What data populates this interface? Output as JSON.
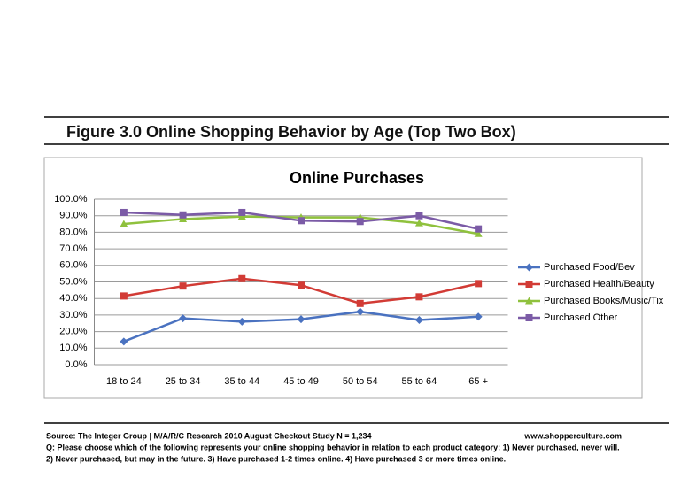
{
  "header": {
    "title": "Figure 3.0 Online Shopping Behavior by Age (Top Two Box)"
  },
  "chart_data": {
    "type": "line",
    "title": "Online Purchases",
    "categories": [
      "18 to 24",
      "25 to 34",
      "35 to 44",
      "45 to 49",
      "50 to 54",
      "55 to 64",
      "65 +"
    ],
    "series": [
      {
        "name": "Purchased Food/Bev",
        "color": "#4a72c0",
        "marker": "diamond",
        "values": [
          14,
          28,
          26,
          27.5,
          32,
          27,
          29
        ]
      },
      {
        "name": "Purchased Health/Beauty",
        "color": "#d23b35",
        "marker": "square",
        "values": [
          41.5,
          47.5,
          52,
          48,
          37,
          41,
          49
        ]
      },
      {
        "name": "Purchased Books/Music/Tix",
        "color": "#8fc13d",
        "marker": "triangle",
        "values": [
          85,
          88,
          89.5,
          89,
          89,
          85.5,
          79
        ]
      },
      {
        "name": "Purchased Other",
        "color": "#7b5ba6",
        "marker": "square",
        "values": [
          92,
          90.5,
          92,
          87,
          86.5,
          90,
          82
        ]
      }
    ],
    "ylim": [
      0,
      100
    ],
    "yticks": [
      {
        "value": 0,
        "label": "0.0%"
      },
      {
        "value": 10,
        "label": "10.0%"
      },
      {
        "value": 20,
        "label": "20.0%"
      },
      {
        "value": 30,
        "label": "30.0%"
      },
      {
        "value": 40,
        "label": "40.0%"
      },
      {
        "value": 50,
        "label": "50.0%"
      },
      {
        "value": 60,
        "label": "60.0%"
      },
      {
        "value": 70,
        "label": "70.0%"
      },
      {
        "value": 80,
        "label": "80.0%"
      },
      {
        "value": 90,
        "label": "90.0%"
      },
      {
        "value": 100,
        "label": "100.0%"
      }
    ],
    "grid": true,
    "legend": "right"
  },
  "footer": {
    "source": "Source: The Integer Group | M/A/R/C Research 2010 August Checkout Study  N = 1,234",
    "website": "www.shopperculture.com",
    "question_1": "Q: Please choose which of the following represents your online shopping behavior in relation to each product category: 1) Never purchased, never will.",
    "question_2": "2) Never purchased, but may in the future. 3) Have purchased 1-2 times online. 4) Have purchased 3 or more times online."
  }
}
